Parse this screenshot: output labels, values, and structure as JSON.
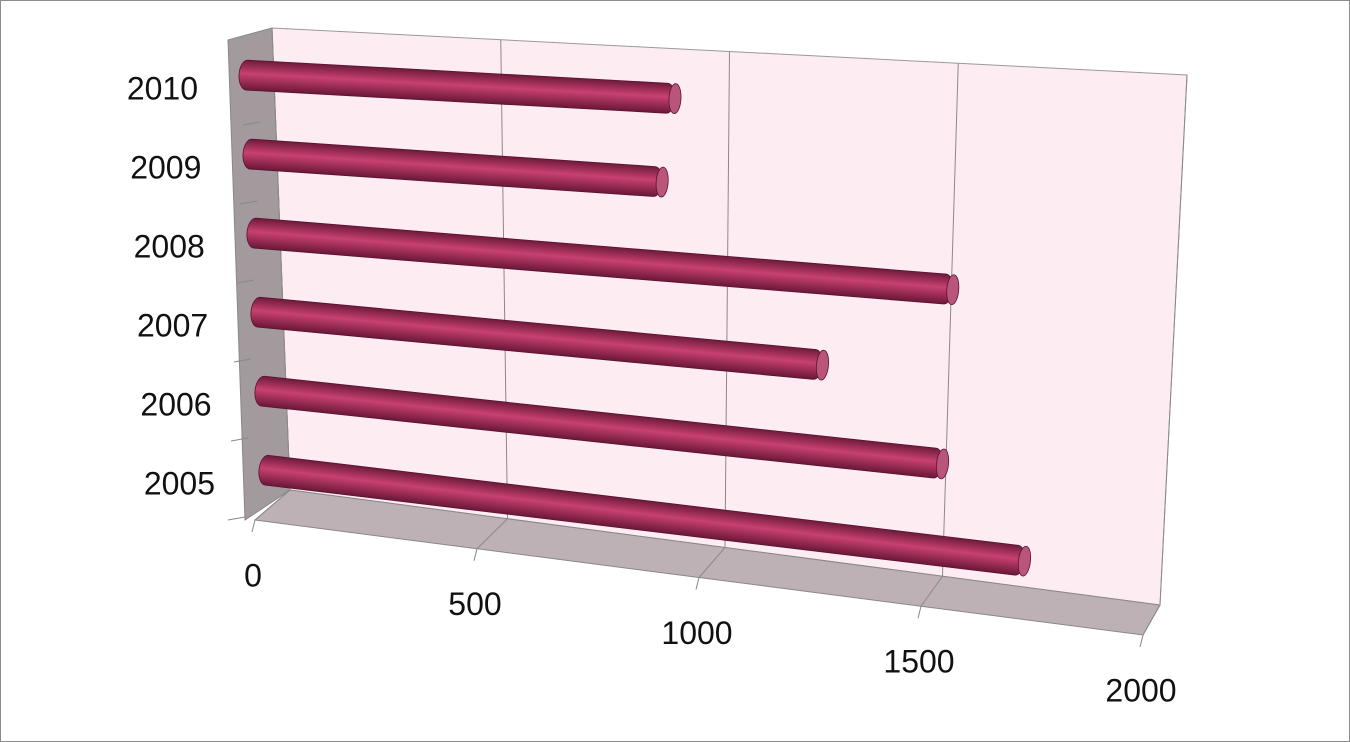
{
  "chart_data": {
    "type": "bar",
    "orientation": "horizontal",
    "categories": [
      "2005",
      "2006",
      "2007",
      "2008",
      "2009",
      "2010"
    ],
    "values": [
      1660,
      1480,
      1220,
      1500,
      880,
      910
    ],
    "color": "#b2305f",
    "xlim": [
      0,
      2000
    ],
    "xticks": [
      0,
      500,
      1000,
      1500,
      2000
    ],
    "grid": true
  }
}
